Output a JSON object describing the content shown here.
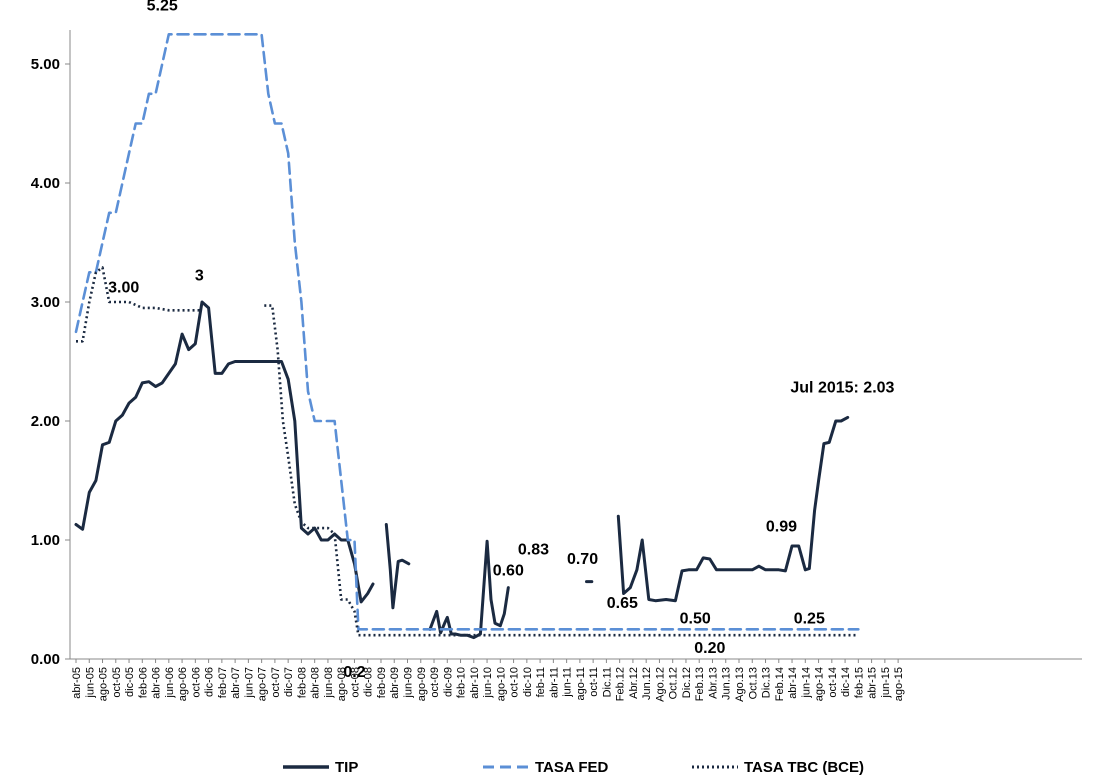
{
  "chart_data": {
    "type": "line",
    "xlabel": "",
    "ylabel": "",
    "ylim": [
      0,
      5.4
    ],
    "yticks": [
      "0.00",
      "1.00",
      "2.00",
      "3.00",
      "4.00",
      "5.00"
    ],
    "grid": false,
    "legend_position": "bottom",
    "x_tick_labels": [
      "abr-05",
      "jun-05",
      "ago-05",
      "oct-05",
      "dic-05",
      "feb-06",
      "abr-06",
      "jun-06",
      "ago-06",
      "oct-06",
      "dic-06",
      "feb-07",
      "abr-07",
      "jun-07",
      "ago-07",
      "oct-07",
      "dic-07",
      "feb-08",
      "abr-08",
      "jun-08",
      "ago-08",
      "oct-08",
      "dic-08",
      "feb-09",
      "abr-09",
      "jun-09",
      "ago-09",
      "oct-09",
      "dic-09",
      "feb-10",
      "abr-10",
      "jun-10",
      "ago-10",
      "oct-10",
      "dic-10",
      "feb-11",
      "abr-11",
      "jun-11",
      "ago-11",
      "oct-11",
      "Dic.11",
      "Feb.12",
      "Abr.12",
      "Jun.12",
      "Ago.12",
      "Oct.12",
      "Dic.12",
      "Feb.13",
      "Abr.13",
      "Jun.13",
      "Ago.13",
      "Oct.13",
      "Dic.13",
      "Feb.14",
      "abr-14",
      "jun-14",
      "ago-14",
      "oct-14",
      "dic-14",
      "feb-15",
      "abr-15",
      "jun-15",
      "ago-15"
    ],
    "series": [
      {
        "name": "TIP",
        "color": "#1b2a41",
        "dash": "solid",
        "segments": [
          [
            [
              0,
              1.13
            ],
            [
              0.5,
              1.09
            ],
            [
              1,
              1.4
            ],
            [
              1.5,
              1.5
            ],
            [
              2,
              1.8
            ],
            [
              2.5,
              1.82
            ],
            [
              3,
              2.0
            ],
            [
              3.5,
              2.05
            ],
            [
              4,
              2.15
            ],
            [
              4.5,
              2.2
            ],
            [
              5,
              2.32
            ],
            [
              5.5,
              2.33
            ],
            [
              6,
              2.29
            ],
            [
              6.5,
              2.32
            ],
            [
              7,
              2.4
            ],
            [
              7.5,
              2.48
            ],
            [
              8,
              2.73
            ],
            [
              8.5,
              2.6
            ],
            [
              9,
              2.65
            ],
            [
              9.5,
              3.0
            ],
            [
              10,
              2.95
            ],
            [
              10.5,
              2.4
            ],
            [
              11,
              2.4
            ],
            [
              11.5,
              2.48
            ],
            [
              12,
              2.5
            ],
            [
              13,
              2.5
            ],
            [
              14,
              2.5
            ],
            [
              15,
              2.5
            ],
            [
              15.5,
              2.5
            ],
            [
              16,
              2.35
            ],
            [
              16.5,
              2.0
            ],
            [
              17,
              1.1
            ],
            [
              17.5,
              1.05
            ],
            [
              18,
              1.1
            ],
            [
              18.5,
              1.0
            ],
            [
              19,
              1.0
            ],
            [
              19.5,
              1.05
            ],
            [
              20,
              1.0
            ],
            [
              20.5,
              1.0
            ],
            [
              21,
              0.8
            ],
            [
              21.5,
              0.48
            ],
            [
              22,
              0.55
            ],
            [
              22.4,
              0.63
            ]
          ],
          [
            [
              23.4,
              1.13
            ],
            [
              23.7,
              0.75
            ],
            [
              23.9,
              0.43
            ],
            [
              24.3,
              0.82
            ],
            [
              24.6,
              0.83
            ],
            [
              25.1,
              0.8
            ]
          ],
          [
            [
              26.7,
              0.25
            ],
            [
              27.2,
              0.4
            ],
            [
              27.5,
              0.22
            ],
            [
              27.8,
              0.3
            ],
            [
              28.0,
              0.35
            ],
            [
              28.3,
              0.21
            ],
            [
              28.6,
              0.21
            ],
            [
              29,
              0.2
            ],
            [
              29.5,
              0.2
            ],
            [
              30,
              0.18
            ],
            [
              30.5,
              0.21
            ],
            [
              31,
              0.99
            ],
            [
              31.3,
              0.5
            ],
            [
              31.6,
              0.3
            ],
            [
              32,
              0.28
            ],
            [
              32.3,
              0.38
            ],
            [
              32.6,
              0.6
            ]
          ],
          [
            [
              38.5,
              0.65
            ],
            [
              38.9,
              0.65
            ]
          ],
          [
            [
              40.9,
              1.2
            ],
            [
              41.3,
              0.55
            ],
            [
              41.8,
              0.6
            ],
            [
              42.3,
              0.75
            ],
            [
              42.7,
              1.0
            ],
            [
              43.2,
              0.5
            ],
            [
              43.7,
              0.49
            ],
            [
              44.5,
              0.5
            ],
            [
              45.2,
              0.49
            ],
            [
              45.7,
              0.74
            ],
            [
              46.2,
              0.75
            ],
            [
              46.8,
              0.75
            ],
            [
              47.3,
              0.85
            ],
            [
              47.8,
              0.84
            ],
            [
              48.3,
              0.75
            ],
            [
              49,
              0.75
            ],
            [
              50,
              0.75
            ],
            [
              51,
              0.75
            ],
            [
              51.5,
              0.78
            ],
            [
              52,
              0.75
            ],
            [
              53,
              0.75
            ],
            [
              53.5,
              0.74
            ],
            [
              54,
              0.95
            ],
            [
              54.5,
              0.95
            ],
            [
              55,
              0.75
            ],
            [
              55.3,
              0.76
            ],
            [
              55.7,
              1.25
            ],
            [
              56,
              1.5
            ],
            [
              56.4,
              1.81
            ],
            [
              56.8,
              1.82
            ],
            [
              57.3,
              2.0
            ],
            [
              57.7,
              2.0
            ],
            [
              58.2,
              2.03
            ]
          ]
        ]
      },
      {
        "name": "TASA FED",
        "color": "#5b8fd6",
        "dash": "long-dash",
        "segments": [
          [
            [
              0,
              2.75
            ],
            [
              0.5,
              3.0
            ],
            [
              1,
              3.25
            ],
            [
              1.5,
              3.25
            ],
            [
              2,
              3.5
            ],
            [
              2.5,
              3.75
            ],
            [
              3,
              3.75
            ],
            [
              3.5,
              4.0
            ],
            [
              4,
              4.25
            ],
            [
              4.5,
              4.5
            ],
            [
              5,
              4.5
            ],
            [
              5.5,
              4.75
            ],
            [
              6,
              4.75
            ],
            [
              6.5,
              5.0
            ],
            [
              7,
              5.25
            ],
            [
              8,
              5.25
            ],
            [
              9,
              5.25
            ],
            [
              10,
              5.25
            ],
            [
              11,
              5.25
            ],
            [
              12,
              5.25
            ],
            [
              13,
              5.25
            ],
            [
              14,
              5.25
            ],
            [
              14.5,
              4.75
            ],
            [
              15,
              4.5
            ],
            [
              15.5,
              4.5
            ],
            [
              16,
              4.25
            ],
            [
              16.5,
              3.5
            ],
            [
              17,
              3.0
            ],
            [
              17.5,
              2.25
            ],
            [
              18,
              2.0
            ],
            [
              19,
              2.0
            ],
            [
              19.5,
              2.0
            ],
            [
              20,
              1.5
            ],
            [
              20.5,
              1.0
            ],
            [
              21,
              1.0
            ],
            [
              21.3,
              0.25
            ],
            [
              22,
              0.25
            ],
            [
              30,
              0.25
            ],
            [
              40,
              0.25
            ],
            [
              50,
              0.25
            ],
            [
              59,
              0.25
            ]
          ]
        ]
      },
      {
        "name": "TASA TBC (BCE)",
        "color": "#1b2a41",
        "dash": "dotted",
        "segments": [
          [
            [
              0,
              2.67
            ],
            [
              0.5,
              2.67
            ],
            [
              1,
              3.0
            ],
            [
              1.5,
              3.25
            ],
            [
              2,
              3.29
            ],
            [
              2.5,
              3.0
            ],
            [
              3,
              3.0
            ],
            [
              4,
              3.0
            ],
            [
              5,
              2.95
            ],
            [
              6,
              2.95
            ],
            [
              7,
              2.93
            ],
            [
              8,
              2.93
            ],
            [
              9,
              2.93
            ],
            [
              9.5,
              2.93
            ]
          ],
          [
            [
              14.2,
              2.97
            ],
            [
              14.8,
              2.97
            ],
            [
              15.2,
              2.6
            ],
            [
              15.6,
              2.0
            ],
            [
              16,
              1.7
            ],
            [
              16.5,
              1.3
            ],
            [
              17,
              1.15
            ],
            [
              17.5,
              1.1
            ],
            [
              18,
              1.1
            ],
            [
              18.5,
              1.1
            ],
            [
              19,
              1.1
            ],
            [
              19.5,
              1.05
            ],
            [
              20,
              0.5
            ],
            [
              20.5,
              0.5
            ],
            [
              21,
              0.4
            ],
            [
              21.3,
              0.2
            ],
            [
              22,
              0.2
            ],
            [
              30,
              0.2
            ],
            [
              40,
              0.2
            ],
            [
              50,
              0.2
            ],
            [
              59,
              0.2
            ]
          ]
        ]
      }
    ],
    "annotations": [
      {
        "text": "5.25",
        "x": 6.5,
        "y": 5.45
      },
      {
        "text": "3",
        "x": 9.3,
        "y": 3.18
      },
      {
        "text": "3.00",
        "x": 3.6,
        "y": 3.08
      },
      {
        "text": "0.2",
        "x": 21.0,
        "y": -0.15
      },
      {
        "text": "0.60",
        "x": 32.6,
        "y": 0.7
      },
      {
        "text": "0.83",
        "x": 34.5,
        "y": 0.88
      },
      {
        "text": "0.70",
        "x": 38.2,
        "y": 0.8
      },
      {
        "text": "0.65",
        "x": 41.2,
        "y": 0.43
      },
      {
        "text": "0.50",
        "x": 46.7,
        "y": 0.3
      },
      {
        "text": "0.25",
        "x": 55.3,
        "y": 0.3
      },
      {
        "text": "0.20",
        "x": 47.8,
        "y": 0.05
      },
      {
        "text": "0.99",
        "x": 53.2,
        "y": 1.07
      },
      {
        "text": "Jul 2015: 2.03",
        "x": 57.8,
        "y": 2.24
      }
    ]
  }
}
